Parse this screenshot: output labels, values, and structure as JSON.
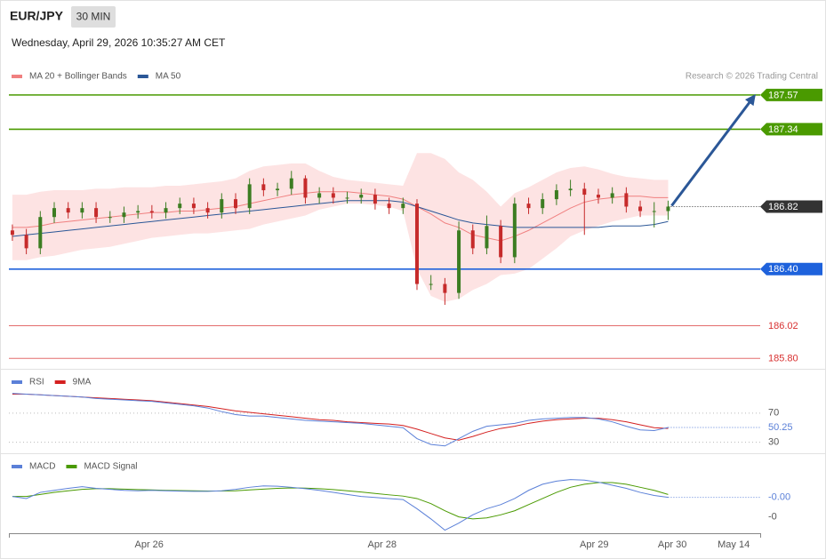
{
  "header": {
    "symbol": "EUR/JPY",
    "interval": "30 MIN",
    "timestamp": "Wednesday, April 29, 2026 10:35:27 AM CET",
    "credit": "Research © 2026 Trading Central"
  },
  "chart_data": [
    {
      "type": "candlestick",
      "xlim": [
        -0.25,
        53.6
      ],
      "ylim": [
        185.73,
        187.85
      ],
      "up_color": "#3c7d22",
      "down_color": "#c62b2b",
      "candles": {
        "open": [
          186.66,
          186.63,
          186.54,
          186.75,
          186.81,
          186.78,
          186.81,
          186.75,
          186.75,
          186.78,
          186.79,
          186.78,
          186.81,
          186.84,
          186.81,
          186.78,
          186.87,
          186.81,
          186.97,
          186.93,
          186.94,
          187.01,
          186.88,
          186.91,
          186.88,
          186.88,
          186.9,
          186.84,
          186.81,
          186.84,
          186.3,
          186.3,
          186.24,
          186.66,
          186.54,
          186.69,
          186.48,
          186.84,
          186.81,
          186.87,
          186.93,
          186.94,
          186.9,
          186.88,
          186.91,
          186.82,
          186.79,
          186.79
        ],
        "high": [
          186.7,
          186.67,
          186.79,
          186.85,
          186.85,
          186.85,
          186.85,
          186.79,
          186.82,
          186.83,
          186.83,
          186.85,
          186.88,
          186.88,
          186.85,
          186.91,
          186.91,
          187.01,
          187.01,
          186.98,
          187.06,
          187.03,
          186.95,
          186.95,
          186.92,
          186.94,
          186.94,
          186.88,
          186.88,
          186.87,
          186.36,
          186.34,
          186.72,
          186.7,
          186.76,
          186.73,
          186.88,
          186.88,
          186.91,
          186.97,
          187.0,
          186.98,
          186.94,
          186.95,
          186.95,
          186.86,
          186.85,
          186.86
        ],
        "low": [
          186.59,
          186.5,
          186.5,
          186.71,
          186.74,
          186.74,
          186.71,
          186.71,
          186.71,
          186.74,
          186.74,
          186.74,
          186.77,
          186.77,
          186.74,
          186.74,
          186.77,
          186.77,
          186.89,
          186.89,
          186.9,
          186.84,
          186.84,
          186.84,
          186.84,
          186.84,
          186.8,
          186.77,
          186.77,
          186.26,
          186.26,
          186.16,
          186.2,
          186.5,
          186.5,
          186.44,
          186.44,
          186.77,
          186.77,
          186.83,
          186.89,
          186.63,
          186.84,
          186.84,
          186.78,
          186.75,
          186.68,
          186.73
        ],
        "close": [
          186.63,
          186.54,
          186.75,
          186.81,
          186.78,
          186.81,
          186.75,
          186.75,
          186.78,
          186.79,
          186.78,
          186.81,
          186.84,
          186.81,
          186.78,
          186.87,
          186.81,
          186.97,
          186.93,
          186.94,
          187.01,
          186.88,
          186.91,
          186.88,
          186.88,
          186.9,
          186.84,
          186.81,
          186.84,
          186.3,
          186.3,
          186.24,
          186.66,
          186.54,
          186.69,
          186.48,
          186.84,
          186.81,
          186.87,
          186.93,
          186.94,
          186.9,
          186.88,
          186.91,
          186.82,
          186.79,
          186.79,
          186.82
        ]
      },
      "bands": {
        "color": "#fde3e3",
        "upper": [
          186.9,
          186.9,
          186.92,
          186.93,
          186.93,
          186.93,
          186.94,
          186.94,
          186.95,
          186.95,
          186.95,
          186.96,
          186.96,
          186.97,
          186.98,
          186.99,
          187.01,
          187.06,
          187.09,
          187.1,
          187.11,
          187.11,
          187.06,
          187.02,
          187.0,
          186.99,
          186.98,
          186.97,
          186.96,
          187.18,
          187.18,
          187.14,
          187.05,
          187.0,
          186.92,
          186.82,
          186.91,
          186.95,
          187.0,
          187.05,
          187.08,
          187.09,
          187.07,
          187.04,
          187.02,
          187.01,
          187.0,
          187.0
        ],
        "lower": [
          186.46,
          186.46,
          186.48,
          186.49,
          186.51,
          186.53,
          186.54,
          186.55,
          186.57,
          186.59,
          186.61,
          186.62,
          186.63,
          186.64,
          186.64,
          186.65,
          186.66,
          186.67,
          186.7,
          186.72,
          186.74,
          186.76,
          186.8,
          186.82,
          186.84,
          186.84,
          186.83,
          186.82,
          186.79,
          186.4,
          186.22,
          186.18,
          186.2,
          186.26,
          186.3,
          186.36,
          186.37,
          186.4,
          186.47,
          186.54,
          186.62,
          186.66,
          186.69,
          186.72,
          186.74,
          186.76,
          186.76,
          186.76
        ]
      },
      "series": [
        {
          "name": "MA 20 + Bollinger Bands",
          "color": "#f08080",
          "values": [
            186.68,
            186.68,
            186.69,
            186.71,
            186.72,
            186.73,
            186.74,
            186.75,
            186.76,
            186.77,
            186.78,
            186.78,
            186.79,
            186.79,
            186.8,
            186.81,
            186.82,
            186.84,
            186.86,
            186.88,
            186.9,
            186.91,
            186.92,
            186.92,
            186.92,
            186.91,
            186.9,
            186.89,
            186.87,
            186.82,
            186.77,
            186.71,
            186.68,
            186.63,
            186.61,
            186.59,
            186.62,
            186.66,
            186.71,
            186.76,
            186.81,
            186.85,
            186.87,
            186.88,
            186.89,
            186.89,
            186.88,
            186.88
          ]
        },
        {
          "name": "MA 50",
          "color": "#2b5797",
          "values": [
            186.62,
            186.63,
            186.64,
            186.65,
            186.66,
            186.67,
            186.68,
            186.69,
            186.7,
            186.71,
            186.72,
            186.73,
            186.74,
            186.75,
            186.76,
            186.77,
            186.78,
            186.79,
            186.8,
            186.81,
            186.82,
            186.83,
            186.84,
            186.85,
            186.86,
            186.86,
            186.86,
            186.86,
            186.85,
            186.82,
            186.79,
            186.76,
            186.73,
            186.71,
            186.7,
            186.69,
            186.68,
            186.68,
            186.68,
            186.68,
            186.68,
            186.68,
            186.68,
            186.69,
            186.69,
            186.69,
            186.7,
            186.72
          ]
        }
      ],
      "levels": [
        {
          "value": 187.57,
          "color": "#4a9a00",
          "badge": true,
          "style": "solid"
        },
        {
          "value": 187.34,
          "color": "#4a9a00",
          "badge": true,
          "style": "solid"
        },
        {
          "value": 186.82,
          "color": "#333333",
          "badge": true,
          "style": "dotted"
        },
        {
          "value": 186.4,
          "label": "186.40",
          "color": "#1e62dc",
          "badge": true,
          "style": "solid"
        },
        {
          "value": 186.02,
          "color": "#d83030",
          "badge": false,
          "style": "thin"
        },
        {
          "value": 185.8,
          "label": "185.80",
          "color": "#d83030",
          "badge": false,
          "style": "thin"
        }
      ]
    },
    {
      "type": "line",
      "xlim": [
        -0.25,
        53.6
      ],
      "ylim": [
        15,
        127
      ],
      "yticks": [
        70,
        30
      ],
      "grid": true,
      "series": [
        {
          "name": "RSI",
          "color": "#5b80d8",
          "values": [
            97,
            96,
            95,
            94,
            93,
            92,
            90,
            89,
            88,
            87,
            86,
            84,
            82,
            80,
            77,
            72,
            68,
            66,
            66,
            64,
            62,
            60,
            59,
            58,
            57,
            56,
            54,
            52,
            50,
            35,
            27,
            25,
            35,
            45,
            52,
            54,
            56,
            60,
            62,
            63,
            64,
            64,
            62,
            58,
            52,
            47,
            46,
            50.25
          ]
        },
        {
          "name": "9MA",
          "color": "#d42020",
          "values": [
            96,
            96,
            95,
            94,
            93,
            92,
            91,
            90,
            89,
            88,
            87,
            85,
            83,
            81,
            79,
            76,
            73,
            71,
            69,
            67,
            65,
            63,
            61,
            60,
            58,
            57,
            56,
            55,
            53,
            48,
            42,
            36,
            33,
            38,
            44,
            49,
            52,
            56,
            59,
            61,
            62,
            63,
            63,
            61,
            58,
            54,
            50,
            49
          ]
        }
      ]
    },
    {
      "type": "line",
      "xlim": [
        -0.25,
        53.6
      ],
      "ylim": [
        -0.18,
        0.19
      ],
      "yticks": [
        {
          "value": -0.1,
          "label": "-0"
        }
      ],
      "grid": false,
      "xticks": [
        {
          "value": 9.8,
          "label": "Apr 26"
        },
        {
          "value": 26.5,
          "label": "Apr 28"
        },
        {
          "value": 41.7,
          "label": "Apr 29"
        },
        {
          "value": 47.3,
          "label": "Apr 30"
        },
        {
          "value": 51.7,
          "label": "May 14"
        }
      ],
      "series": [
        {
          "name": "MACD",
          "color": "#5b80d8",
          "last_value_label": "-0.00",
          "values": [
            0,
            -0.01,
            0.02,
            0.03,
            0.04,
            0.048,
            0.04,
            0.035,
            0.03,
            0.028,
            0.03,
            0.028,
            0.026,
            0.025,
            0.025,
            0.028,
            0.035,
            0.045,
            0.052,
            0.05,
            0.045,
            0.038,
            0.03,
            0.02,
            0.01,
            0.0,
            -0.005,
            -0.01,
            -0.015,
            -0.06,
            -0.11,
            -0.165,
            -0.13,
            -0.09,
            -0.06,
            -0.04,
            -0.01,
            0.03,
            0.06,
            0.075,
            0.083,
            0.08,
            0.07,
            0.055,
            0.04,
            0.02,
            0.005,
            -0.004
          ]
        },
        {
          "name": "MACD Signal",
          "color": "#4a9a00",
          "values": [
            0,
            0,
            0.01,
            0.02,
            0.028,
            0.035,
            0.038,
            0.038,
            0.036,
            0.034,
            0.032,
            0.03,
            0.029,
            0.028,
            0.027,
            0.027,
            0.028,
            0.032,
            0.036,
            0.04,
            0.042,
            0.041,
            0.038,
            0.034,
            0.028,
            0.022,
            0.015,
            0.008,
            0.002,
            -0.01,
            -0.035,
            -0.07,
            -0.1,
            -0.11,
            -0.105,
            -0.09,
            -0.07,
            -0.04,
            -0.01,
            0.02,
            0.045,
            0.06,
            0.068,
            0.068,
            0.06,
            0.045,
            0.03,
            0.01
          ]
        }
      ]
    }
  ]
}
